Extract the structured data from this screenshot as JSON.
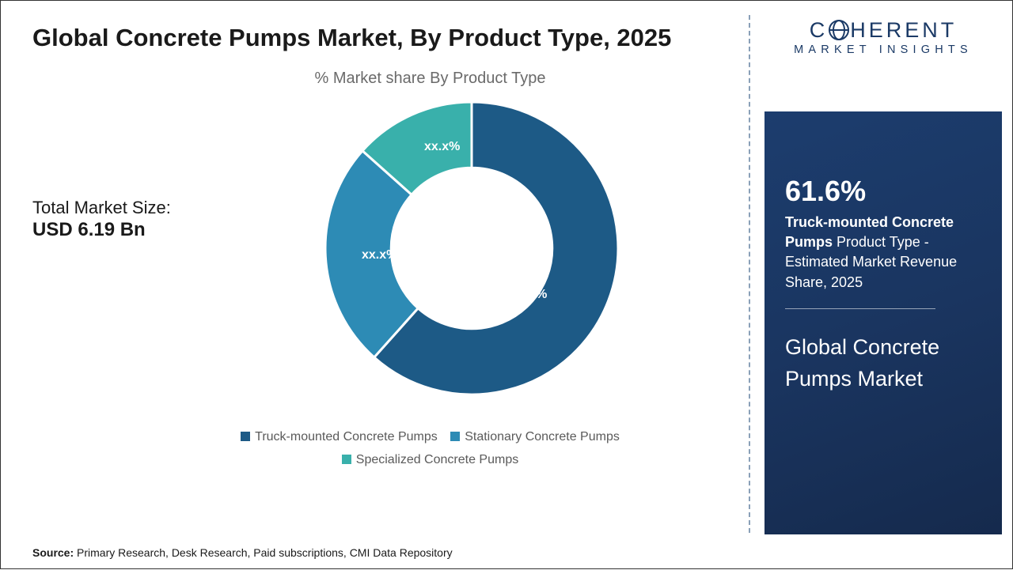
{
  "title": "Global Concrete Pumps Market, By Product Type, 2025",
  "subtitle": "% Market share By Product Type",
  "market_size": {
    "label": "Total Market Size:",
    "value": "USD 6.19 Bn"
  },
  "chart": {
    "type": "donut",
    "background_color": "#ffffff",
    "inner_radius_ratio": 0.55,
    "stroke_color": "#ffffff",
    "stroke_width": 3,
    "label_color": "#ffffff",
    "label_fontsize": 16,
    "slices": [
      {
        "name": "Truck-mounted Concrete Pumps",
        "value": 61.6,
        "label": "61.6%",
        "color": "#1d5a86"
      },
      {
        "name": "Stationary Concrete Pumps",
        "value": 25.0,
        "label": "xx.x%",
        "color": "#2d8bb5"
      },
      {
        "name": "Specialized Concrete Pumps",
        "value": 13.4,
        "label": "xx.x%",
        "color": "#39b0ab"
      }
    ]
  },
  "legend": {
    "fontsize": 16,
    "text_color": "#5a5a5a",
    "swatch_size": 12,
    "items": [
      {
        "label": "Truck-mounted Concrete Pumps",
        "color": "#1d5a86"
      },
      {
        "label": "Stationary Concrete Pumps",
        "color": "#2d8bb5"
      },
      {
        "label": "Specialized Concrete Pumps",
        "color": "#39b0ab"
      }
    ]
  },
  "source": {
    "prefix": "Source:",
    "text": " Primary Research, Desk Research, Paid subscriptions, CMI Data Repository"
  },
  "logo": {
    "line1_before": "C",
    "line1_after": "HERENT",
    "line2": "MARKET INSIGHTS",
    "color": "#1b3a66"
  },
  "highlight": {
    "percent": "61.6%",
    "bold_lead": "Truck-mounted Concrete Pumps",
    "rest": " Product Type - Estimated Market Revenue Share, 2025",
    "market_name": "Global Concrete Pumps Market",
    "box_bg_from": "#1c3d6e",
    "box_bg_to": "#152a4d",
    "text_color": "#ffffff"
  },
  "divider_color": "#8aa0b8"
}
